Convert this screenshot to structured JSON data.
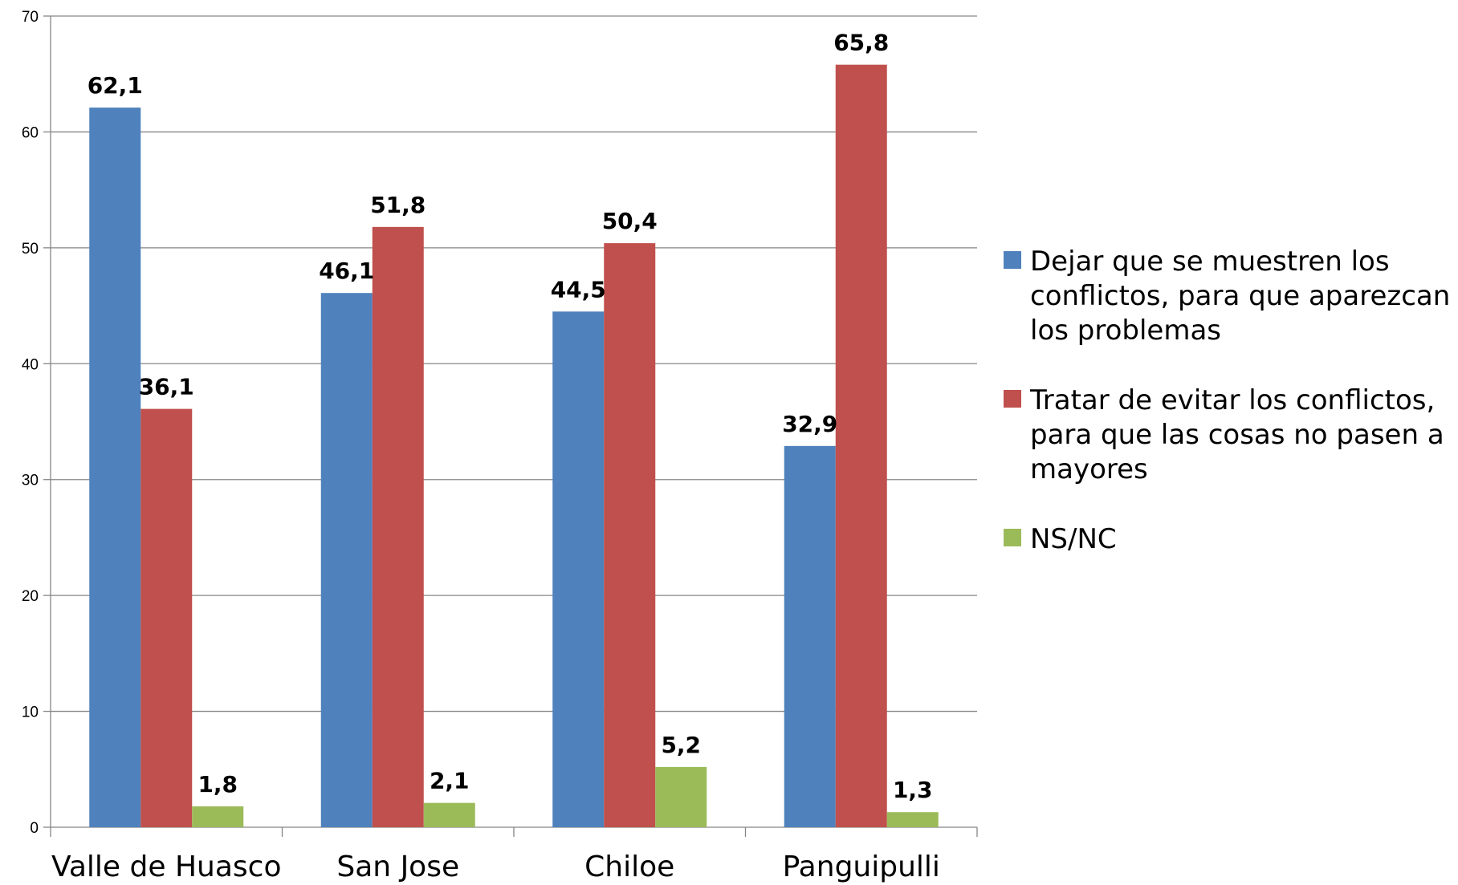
{
  "chart_data": {
    "type": "bar",
    "title": "",
    "xlabel": "",
    "ylabel": "",
    "categories": [
      "Valle de Huasco",
      "San Jose",
      "Chiloe",
      "Panguipulli"
    ],
    "series": [
      {
        "name": "Dejar que se muestren los conflictos, para que aparezcan los problemas",
        "legend_lines": [
          "Dejar que se muestren los",
          "conflictos, para que aparezcan",
          "los problemas"
        ],
        "color": "#4F81BD",
        "values": [
          62.1,
          46.1,
          44.5,
          32.9
        ],
        "labels": [
          "62,1",
          "46,1",
          "44,5",
          "32,9"
        ]
      },
      {
        "name": "Tratar de evitar los conflictos, para que las cosas no pasen a mayores",
        "legend_lines": [
          "Tratar de evitar los conflictos,",
          "para que las cosas no pasen a",
          "mayores"
        ],
        "color": "#C0504D",
        "values": [
          36.1,
          51.8,
          50.4,
          65.8
        ],
        "labels": [
          "36,1",
          "51,8",
          "50,4",
          "65,8"
        ]
      },
      {
        "name": "NS/NC",
        "legend_lines": [
          "NS/NC"
        ],
        "color": "#9BBB59",
        "values": [
          1.8,
          2.1,
          5.2,
          1.3
        ],
        "labels": [
          "1,8",
          "2,1",
          "5,2",
          "1,3"
        ]
      }
    ],
    "ylim": [
      0,
      70
    ],
    "yticks": [
      0,
      10,
      20,
      30,
      40,
      50,
      60,
      70
    ],
    "grid": true,
    "legend_position": "right"
  }
}
